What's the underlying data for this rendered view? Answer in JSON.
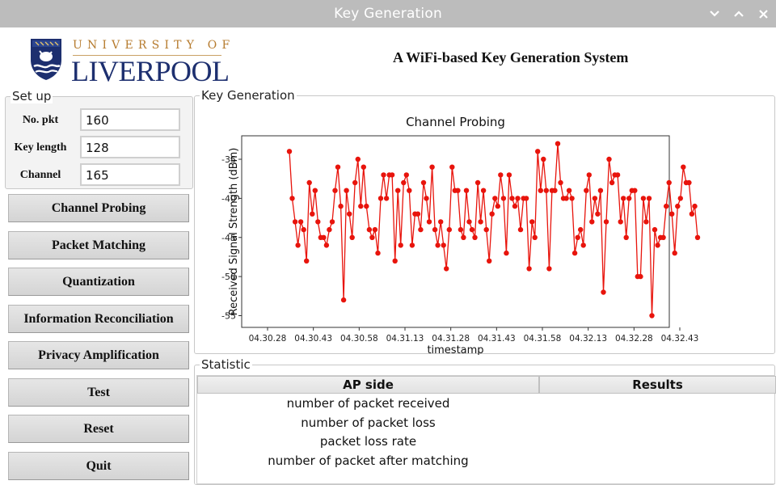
{
  "window": {
    "title": "Key Generation",
    "controls": [
      "chevron-down-icon",
      "chevron-up-icon",
      "close-icon"
    ]
  },
  "header": {
    "logo_top": "UNIVERSITY OF",
    "logo_main": "LIVERPOOL",
    "app_title": "A WiFi-based Key Generation System"
  },
  "setup": {
    "title": "Set up",
    "fields": [
      {
        "label": "No. pkt",
        "value": "160"
      },
      {
        "label": "Key length",
        "value": "128"
      },
      {
        "label": "Channel",
        "value": "165"
      }
    ]
  },
  "buttons": [
    "Channel Probing",
    "Packet Matching",
    "Quantization",
    "Information Reconciliation",
    "Privacy Amplification",
    "Test",
    "Reset",
    "Quit"
  ],
  "keygen": {
    "title": "Key Generation"
  },
  "chart_data": {
    "type": "line",
    "title": "Channel Probing",
    "xlabel": "timestamp",
    "ylabel": "Received Signal Strength (dBm)",
    "x_ticks": [
      "04.30.28",
      "04.30.43",
      "04.30.58",
      "04.31.13",
      "04.31.28",
      "04.31.43",
      "04.31.58",
      "04.32.13",
      "04.32.28",
      "04.32.43"
    ],
    "y_ticks": [
      -35,
      -40,
      -45,
      -50,
      -55
    ],
    "ylim": [
      -56.5,
      -32
    ],
    "grid": false,
    "color": "#e8140c",
    "series": [
      {
        "values": [
          -34,
          -40,
          -43,
          -46,
          -43,
          -44,
          -48,
          -38,
          -42,
          -39,
          -43,
          -45,
          -45,
          -46,
          -44,
          -43,
          -39,
          -36,
          -41,
          -53,
          -39,
          -42,
          -45,
          -38,
          -35,
          -41,
          -36,
          -41,
          -44,
          -45,
          -44,
          -47,
          -40,
          -37,
          -40,
          -37,
          -37,
          -48,
          -39,
          -46,
          -38,
          -37,
          -39,
          -46,
          -42,
          -42,
          -44,
          -38,
          -40,
          -43,
          -36,
          -44,
          -46,
          -43,
          -46,
          -49,
          -44,
          -36,
          -39,
          -39,
          -44,
          -45,
          -39,
          -43,
          -44,
          -45,
          -38,
          -43,
          -39,
          -44,
          -48,
          -42,
          -40,
          -41,
          -37,
          -40,
          -47,
          -37,
          -40,
          -41,
          -40,
          -44,
          -40,
          -40,
          -49,
          -43,
          -45,
          -34,
          -39,
          -35,
          -39,
          -49,
          -39,
          -39,
          -33,
          -38,
          -40,
          -40,
          -39,
          -40,
          -47,
          -45,
          -44,
          -46,
          -39,
          -37,
          -43,
          -40,
          -42,
          -39,
          -52,
          -43,
          -35,
          -38,
          -37,
          -37,
          -43,
          -40,
          -45,
          -40,
          -39,
          -39,
          -50,
          -50,
          -40,
          -43,
          -40,
          -55,
          -44,
          -46,
          -45,
          -45,
          -41,
          -38,
          -42,
          -47,
          -41,
          -40,
          -36,
          -38,
          -38,
          -42,
          -41,
          -45
        ]
      }
    ]
  },
  "statistic": {
    "title": "Statistic",
    "headers": [
      "AP side",
      "Results"
    ],
    "rows": [
      "number of packet received",
      "number of packet loss",
      "packet loss rate",
      "number of packet after matching"
    ]
  }
}
